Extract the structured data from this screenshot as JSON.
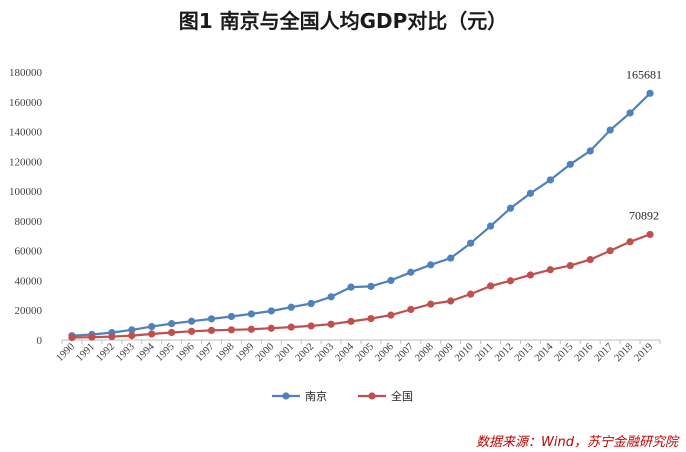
{
  "chart_data": {
    "type": "line",
    "title": "图1    南京与全国人均GDP对比（元）",
    "categories": [
      "1990",
      "1991",
      "1992",
      "1993",
      "1994",
      "1995",
      "1996",
      "1997",
      "1998",
      "1999",
      "2000",
      "2001",
      "2002",
      "2003",
      "2004",
      "2005",
      "2006",
      "2007",
      "2008",
      "2009",
      "2010",
      "2011",
      "2012",
      "2013",
      "2014",
      "2015",
      "2016",
      "2017",
      "2018",
      "2019"
    ],
    "series": [
      {
        "name": "南京",
        "color": "#4f81bd",
        "values": [
          2900,
          3700,
          5000,
          6800,
          9000,
          11000,
          12600,
          14200,
          15800,
          17500,
          19500,
          22000,
          24500,
          29000,
          35500,
          36000,
          40000,
          45500,
          50500,
          55000,
          65000,
          76500,
          88500,
          98500,
          107500,
          118000,
          127000,
          141000,
          152500,
          165681
        ],
        "end_label": "165681"
      },
      {
        "name": "全国",
        "color": "#c0504d",
        "values": [
          1650,
          1900,
          2300,
          2950,
          4050,
          5050,
          5850,
          6450,
          6850,
          7200,
          7900,
          8650,
          9450,
          10600,
          12500,
          14400,
          16700,
          20500,
          24100,
          26200,
          30800,
          36300,
          39800,
          43700,
          47200,
          50000,
          54000,
          60000,
          66000,
          70892
        ],
        "end_label": "70892"
      }
    ],
    "ylim": [
      0,
      180000
    ],
    "yticks": [
      "0",
      "20000",
      "40000",
      "60000",
      "80000",
      "100000",
      "120000",
      "140000",
      "160000",
      "180000"
    ],
    "grid": false,
    "legend_position": "bottom",
    "source": "数据来源：Wind，苏宁金融研究院"
  }
}
